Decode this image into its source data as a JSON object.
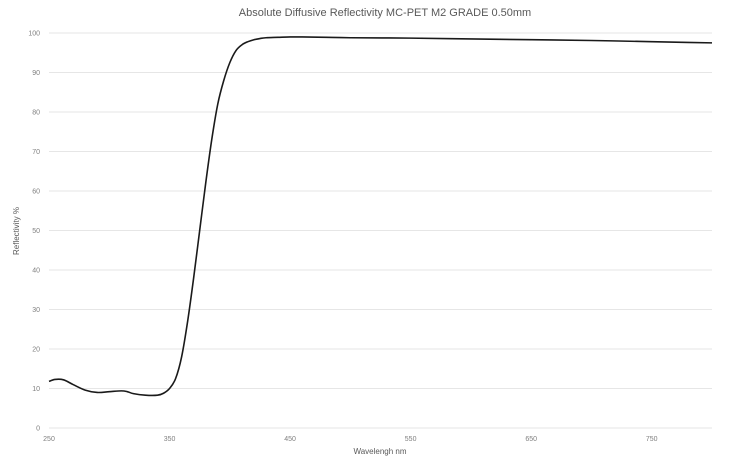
{
  "chart_data": {
    "type": "line",
    "title": "Absolute Diffusive Reflectivity MC-PET M2 GRADE 0.50mm",
    "xlabel": "Wavelengh nm",
    "ylabel": "Reflectivity %",
    "xlim": [
      250,
      800
    ],
    "ylim": [
      0,
      100
    ],
    "xticks": [
      250,
      350,
      450,
      550,
      650,
      750
    ],
    "yticks": [
      0,
      10,
      20,
      30,
      40,
      50,
      60,
      70,
      80,
      90,
      100
    ],
    "grid": true,
    "legend": "none",
    "series_color": "#1a1a1a",
    "series": [
      {
        "x": [
          250,
          255,
          262,
          270,
          280,
          290,
          300,
          310,
          315,
          320,
          330,
          340,
          345,
          350,
          355,
          360,
          365,
          370,
          375,
          380,
          385,
          390,
          395,
          400,
          405,
          410,
          415,
          420,
          425,
          430,
          440,
          450,
          460,
          480,
          500,
          550,
          600,
          650,
          700,
          750,
          780,
          800
        ],
        "y": [
          11.8,
          12.3,
          12.2,
          11,
          9.6,
          9,
          9.2,
          9.4,
          9.2,
          8.7,
          8.3,
          8.3,
          8.8,
          10,
          12.5,
          18,
          27,
          38,
          50,
          62,
          73,
          82,
          88,
          92.5,
          95.5,
          97,
          97.8,
          98.3,
          98.6,
          98.8,
          98.9,
          99,
          99,
          98.9,
          98.8,
          98.7,
          98.5,
          98.3,
          98.1,
          97.8,
          97.6,
          97.5
        ]
      }
    ]
  }
}
